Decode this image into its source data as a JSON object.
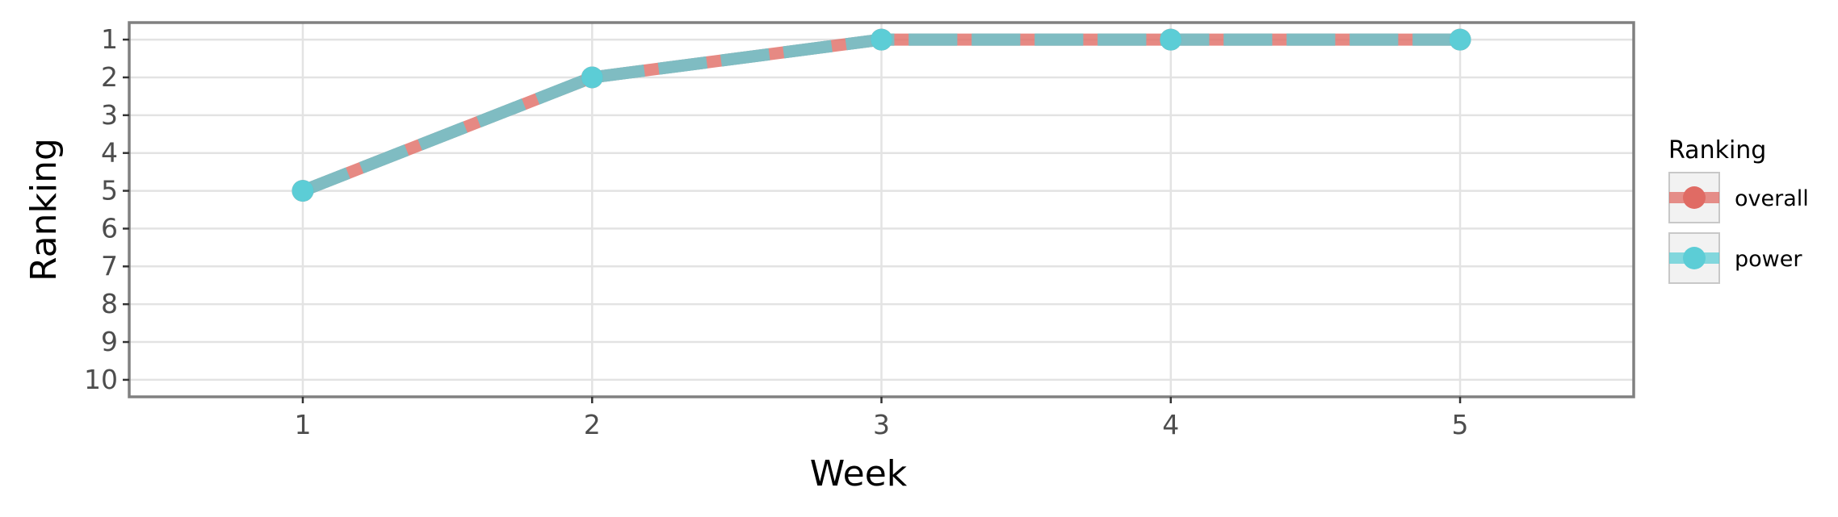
{
  "chart_data": {
    "type": "line",
    "title": "",
    "xlabel": "Week",
    "ylabel": "Ranking",
    "x": [
      1,
      2,
      3,
      4,
      5
    ],
    "x_ticks": [
      "1",
      "2",
      "3",
      "4",
      "5"
    ],
    "y_ticks": [
      "1",
      "2",
      "3",
      "4",
      "5",
      "6",
      "7",
      "8",
      "9",
      "10"
    ],
    "xlim": [
      0.4,
      5.6
    ],
    "ylim": [
      10.45,
      0.55
    ],
    "y_reversed": true,
    "grid": true,
    "legend": {
      "title": "Ranking",
      "placement": "right",
      "entries": [
        "overall",
        "power"
      ]
    },
    "series": [
      {
        "name": "overall",
        "color": "#e06b64",
        "values": [
          5,
          2,
          1,
          1,
          1
        ],
        "line_style": "dashed"
      },
      {
        "name": "power",
        "color": "#5ccdd6",
        "values": [
          5,
          2,
          1,
          1,
          1
        ],
        "line_style": "solid"
      }
    ]
  }
}
